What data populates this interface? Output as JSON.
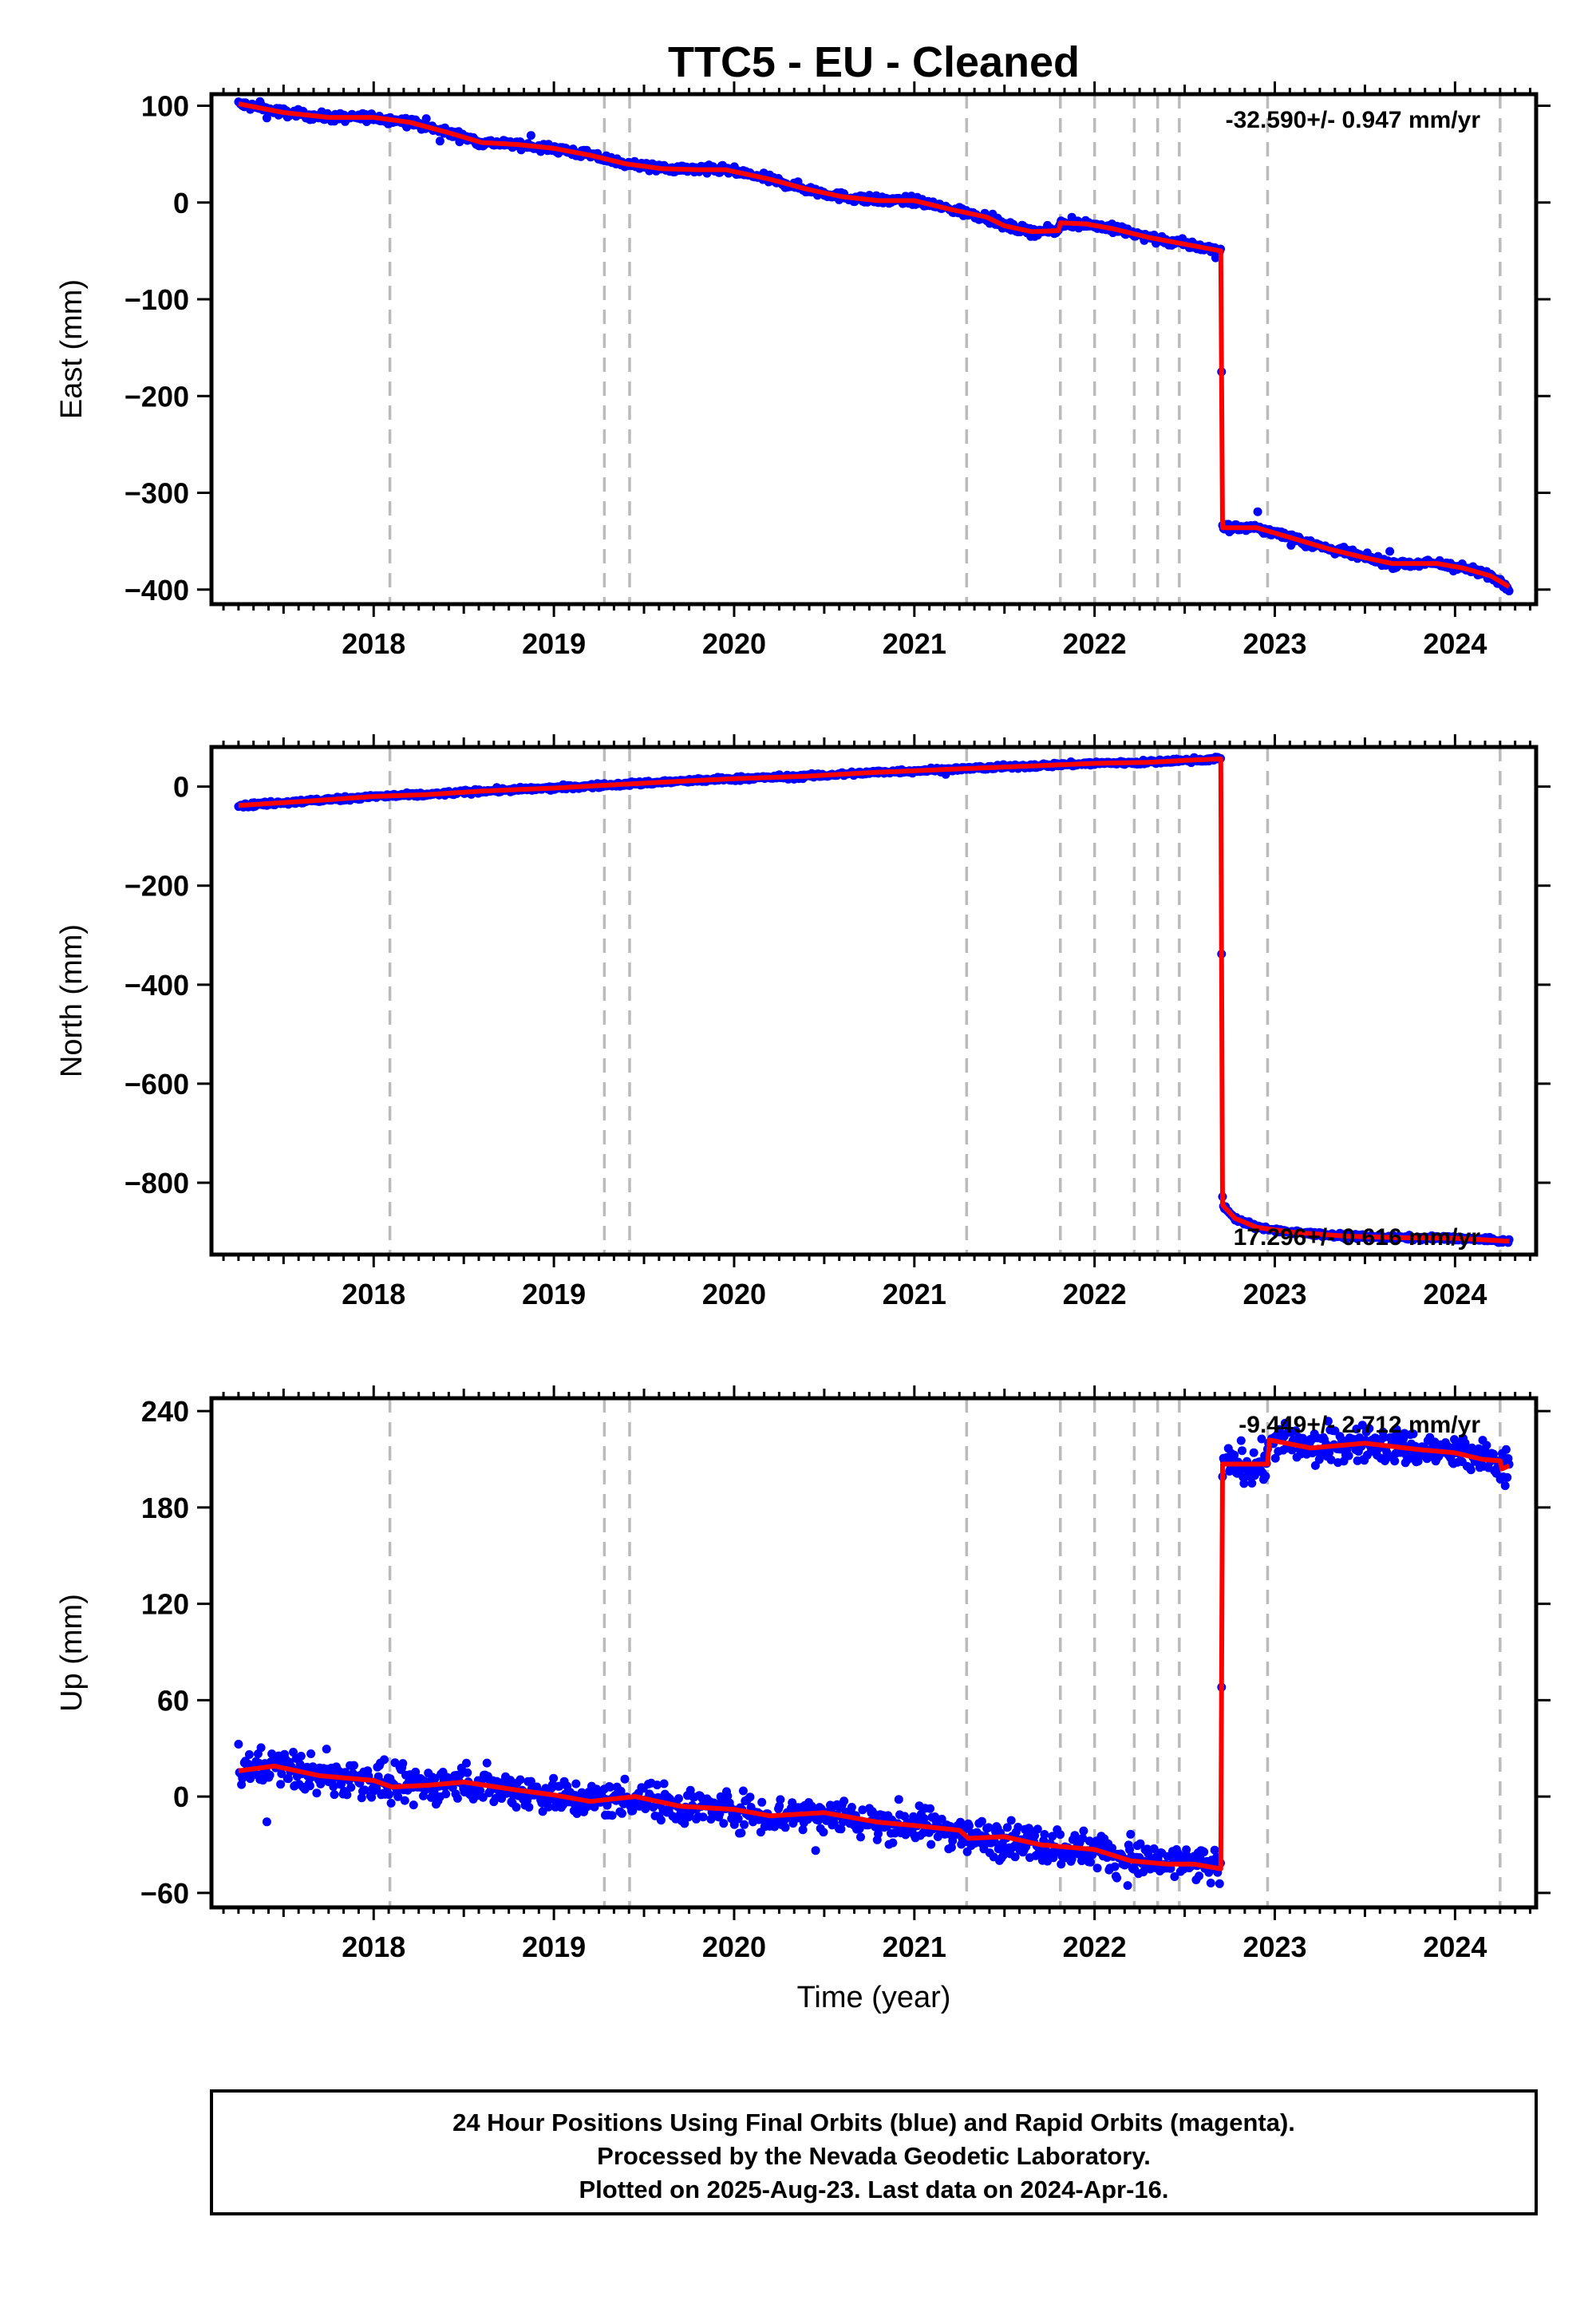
{
  "chart_data": {
    "title": "TTC5  - EU - Cleaned",
    "type": "scatter",
    "xlabel": "Time (year)",
    "xlim": [
      2017.1,
      2024.45
    ],
    "xticks": [
      "2018",
      "2019",
      "2020",
      "2021",
      "2022",
      "2023",
      "2024"
    ],
    "grid": false,
    "equipment_changes": [
      2018.09,
      2019.28,
      2019.42,
      2021.29,
      2021.81,
      2022.0,
      2022.22,
      2022.35,
      2022.47,
      2022.96,
      2024.25
    ],
    "colors": {
      "observations": "#0000ff",
      "model": "#ff0000",
      "event_lines": "#bbbbbb"
    },
    "panels": [
      {
        "name": "east",
        "ylabel": "East (mm)",
        "ylim": [
          -415,
          112
        ],
        "yticks": [
          100,
          0,
          -100,
          -200,
          -300,
          -400
        ],
        "ytick_labels": [
          "100",
          "0",
          "−100",
          "−200",
          "−300",
          "−400"
        ],
        "rate_label": "-32.590+/- 0.947 mm/yr",
        "noise": 3,
        "model": [
          [
            2017.25,
            102
          ],
          [
            2017.5,
            93
          ],
          [
            2017.75,
            88
          ],
          [
            2018.0,
            88
          ],
          [
            2018.2,
            83
          ],
          [
            2018.4,
            73
          ],
          [
            2018.6,
            62
          ],
          [
            2018.8,
            60
          ],
          [
            2019.0,
            56
          ],
          [
            2019.2,
            49
          ],
          [
            2019.4,
            40
          ],
          [
            2019.6,
            35
          ],
          [
            2019.8,
            34
          ],
          [
            2019.95,
            34
          ],
          [
            2020.2,
            24
          ],
          [
            2020.4,
            14
          ],
          [
            2020.6,
            6
          ],
          [
            2020.8,
            2
          ],
          [
            2021.0,
            2
          ],
          [
            2021.2,
            -7
          ],
          [
            2021.4,
            -15
          ],
          [
            2021.5,
            -24
          ],
          [
            2021.65,
            -30
          ],
          [
            2021.8,
            -29
          ],
          [
            2021.81,
            -21
          ],
          [
            2021.95,
            -22
          ],
          [
            2022.1,
            -27
          ],
          [
            2022.3,
            -36
          ],
          [
            2022.5,
            -43
          ],
          [
            2022.7,
            -50
          ],
          [
            2022.71,
            -336
          ],
          [
            2022.9,
            -336
          ],
          [
            2023.1,
            -347
          ],
          [
            2023.3,
            -358
          ],
          [
            2023.5,
            -367
          ],
          [
            2023.65,
            -373
          ],
          [
            2023.9,
            -373
          ],
          [
            2024.05,
            -378
          ],
          [
            2024.2,
            -386
          ],
          [
            2024.3,
            -397
          ]
        ]
      },
      {
        "name": "north",
        "ylabel": "North (mm)",
        "ylim": [
          -945,
          80
        ],
        "yticks": [
          0,
          -200,
          -400,
          -600,
          -800
        ],
        "ytick_labels": [
          "0",
          "−200",
          "−400",
          "−600",
          "−800"
        ],
        "rate_label": "17.296+/- 0.616 mm/yr",
        "noise": 3,
        "model": [
          [
            2017.25,
            -38
          ],
          [
            2017.6,
            -30
          ],
          [
            2018.0,
            -20
          ],
          [
            2018.3,
            -16
          ],
          [
            2018.6,
            -9
          ],
          [
            2019.0,
            -3
          ],
          [
            2019.3,
            3
          ],
          [
            2019.6,
            9
          ],
          [
            2020.0,
            16
          ],
          [
            2020.4,
            21
          ],
          [
            2020.8,
            29
          ],
          [
            2021.2,
            35
          ],
          [
            2021.6,
            41
          ],
          [
            2022.0,
            47
          ],
          [
            2022.3,
            49
          ],
          [
            2022.5,
            53
          ],
          [
            2022.7,
            56
          ],
          [
            2022.71,
            -845
          ],
          [
            2022.78,
            -872
          ],
          [
            2022.9,
            -890
          ],
          [
            2023.1,
            -900
          ],
          [
            2023.4,
            -908
          ],
          [
            2023.7,
            -911
          ],
          [
            2024.0,
            -912
          ],
          [
            2024.3,
            -918
          ]
        ]
      },
      {
        "name": "up",
        "ylabel": "Up (mm)",
        "ylim": [
          -69,
          248
        ],
        "yticks": [
          240,
          180,
          120,
          60,
          0,
          -60
        ],
        "ytick_labels": [
          "240",
          "180",
          "120",
          "60",
          "0",
          "−60"
        ],
        "rate_label": "-9.449+/- 2.712 mm/yr",
        "noise": 8,
        "model": [
          [
            2017.25,
            16
          ],
          [
            2017.45,
            19
          ],
          [
            2017.7,
            13
          ],
          [
            2018.0,
            10
          ],
          [
            2018.1,
            6
          ],
          [
            2018.3,
            7
          ],
          [
            2018.5,
            9
          ],
          [
            2018.8,
            4
          ],
          [
            2019.0,
            1
          ],
          [
            2019.2,
            -3
          ],
          [
            2019.45,
            0
          ],
          [
            2019.7,
            -6
          ],
          [
            2020.0,
            -8
          ],
          [
            2020.2,
            -12
          ],
          [
            2020.5,
            -10
          ],
          [
            2020.8,
            -16
          ],
          [
            2021.0,
            -18
          ],
          [
            2021.25,
            -21
          ],
          [
            2021.3,
            -26
          ],
          [
            2021.5,
            -25
          ],
          [
            2021.7,
            -30
          ],
          [
            2022.0,
            -33
          ],
          [
            2022.2,
            -40
          ],
          [
            2022.4,
            -42
          ],
          [
            2022.55,
            -42
          ],
          [
            2022.7,
            -45
          ],
          [
            2022.71,
            207
          ],
          [
            2022.96,
            207
          ],
          [
            2022.97,
            222
          ],
          [
            2023.2,
            217
          ],
          [
            2023.5,
            220
          ],
          [
            2023.8,
            216
          ],
          [
            2024.0,
            214
          ],
          [
            2024.15,
            210
          ],
          [
            2024.25,
            209
          ],
          [
            2024.26,
            204
          ],
          [
            2024.3,
            206
          ]
        ]
      }
    ],
    "footer_lines": [
      "24 Hour Positions Using Final Orbits (blue) and Rapid Orbits (magenta).",
      "Processed by the Nevada Geodetic Laboratory.",
      "Plotted on 2025-Aug-23. Last data on 2024-Apr-16."
    ]
  }
}
